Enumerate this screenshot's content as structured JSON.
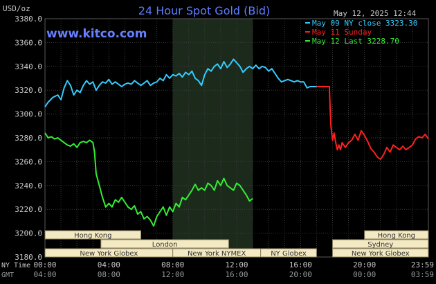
{
  "chart_data": {
    "type": "line",
    "title": "24 Hour Spot Gold (Bid)",
    "units_label": "USD/oz",
    "timestamp": "May 12, 2025 12:44",
    "watermark": "www.kitco.com",
    "ylim": [
      3180,
      3380
    ],
    "y_ticks": [
      "3380.0",
      "3360.0",
      "3340.0",
      "3320.0",
      "3300.0",
      "3280.0",
      "3260.0",
      "3240.0",
      "3220.0",
      "3200.0",
      "3180.0"
    ],
    "xlim": [
      0,
      24
    ],
    "x_ticks": [
      0,
      4,
      8,
      12,
      16,
      20,
      24
    ],
    "x_row_label_1": "NY Time",
    "x_tick_labels_ny": [
      "00:00",
      "04:00",
      "08:00",
      "12:00",
      "16:00",
      "20:00",
      "23:59"
    ],
    "x_row_label_2": "GMT",
    "x_tick_labels_gmt": [
      "04:00",
      "08:00",
      "12:00",
      "16:00",
      "20:00",
      "00:00",
      "03:59"
    ],
    "highlight_x_range": [
      8,
      13
    ],
    "grid": true,
    "legend_position": "top-right",
    "colors": {
      "background": "#000000",
      "plot": "#000000",
      "grid": "#3a3a3a",
      "highlight": "#1c2a1c",
      "title": "#5f7dff",
      "watermark": "#6680ff",
      "axis_text": "#c8c8c8",
      "session_fill": "#f3e9c2"
    },
    "series": [
      {
        "name": "May 09 NY close 3323.30",
        "color": "#33ccff",
        "x": [
          0,
          0.2,
          0.5,
          0.8,
          1.0,
          1.2,
          1.4,
          1.6,
          1.8,
          2.0,
          2.2,
          2.4,
          2.6,
          2.8,
          3.0,
          3.2,
          3.4,
          3.6,
          3.8,
          4.0,
          4.2,
          4.4,
          4.6,
          4.8,
          5.0,
          5.2,
          5.4,
          5.6,
          5.8,
          6.0,
          6.2,
          6.4,
          6.6,
          6.8,
          7.0,
          7.2,
          7.4,
          7.6,
          7.8,
          8.0,
          8.2,
          8.4,
          8.6,
          8.8,
          9.0,
          9.2,
          9.4,
          9.6,
          9.8,
          10.0,
          10.2,
          10.4,
          10.6,
          10.8,
          11.0,
          11.2,
          11.4,
          11.6,
          11.8,
          12.0,
          12.2,
          12.4,
          12.6,
          12.8,
          13.0,
          13.2,
          13.4,
          13.6,
          13.8,
          14.0,
          14.2,
          14.4,
          14.6,
          14.8,
          15.0,
          15.2,
          15.4,
          15.6,
          15.8,
          16.0,
          16.2,
          16.4,
          16.6,
          16.8,
          17.0
        ],
        "y": [
          3306,
          3310,
          3314,
          3316,
          3312,
          3322,
          3328,
          3324,
          3316,
          3320,
          3318,
          3324,
          3328,
          3325,
          3327,
          3320,
          3324,
          3327,
          3326,
          3329,
          3325,
          3327,
          3325,
          3323,
          3325,
          3326,
          3325,
          3328,
          3326,
          3324,
          3326,
          3328,
          3324,
          3326,
          3327,
          3330,
          3328,
          3333,
          3330,
          3333,
          3332,
          3334,
          3331,
          3335,
          3333,
          3336,
          3330,
          3328,
          3324,
          3333,
          3338,
          3336,
          3340,
          3342,
          3338,
          3344,
          3339,
          3342,
          3346,
          3343,
          3340,
          3335,
          3338,
          3340,
          3338,
          3341,
          3338,
          3340,
          3339,
          3336,
          3338,
          3334,
          3330,
          3327,
          3328,
          3329,
          3328,
          3327,
          3328,
          3327,
          3327,
          3322,
          3323,
          3323,
          3323
        ]
      },
      {
        "name": "May 11 Sunday",
        "color": "#ff2020",
        "x": [
          17.0,
          17.4,
          17.8,
          17.85,
          17.9,
          18.0,
          18.1,
          18.2,
          18.3,
          18.4,
          18.5,
          18.6,
          18.8,
          19.0,
          19.2,
          19.4,
          19.6,
          19.8,
          20.0,
          20.2,
          20.4,
          20.6,
          20.8,
          21.0,
          21.2,
          21.4,
          21.6,
          21.8,
          22.0,
          22.2,
          22.4,
          22.6,
          22.8,
          23.0,
          23.2,
          23.4,
          23.6,
          23.8,
          24.0
        ],
        "y": [
          3323,
          3323,
          3323,
          3305,
          3290,
          3278,
          3284,
          3276,
          3270,
          3274,
          3270,
          3276,
          3272,
          3276,
          3278,
          3283,
          3278,
          3286,
          3282,
          3277,
          3271,
          3268,
          3264,
          3262,
          3266,
          3272,
          3268,
          3274,
          3272,
          3270,
          3273,
          3270,
          3272,
          3274,
          3279,
          3281,
          3280,
          3283,
          3279
        ]
      },
      {
        "name": "May 12 Last 3228.70",
        "color": "#33ee33",
        "x": [
          0,
          0.2,
          0.4,
          0.6,
          0.8,
          1.0,
          1.2,
          1.4,
          1.6,
          1.8,
          2.0,
          2.2,
          2.4,
          2.6,
          2.8,
          3.0,
          3.1,
          3.2,
          3.3,
          3.4,
          3.6,
          3.8,
          4.0,
          4.2,
          4.4,
          4.6,
          4.8,
          5.0,
          5.2,
          5.4,
          5.6,
          5.8,
          6.0,
          6.2,
          6.4,
          6.6,
          6.8,
          7.0,
          7.2,
          7.4,
          7.6,
          7.8,
          8.0,
          8.2,
          8.4,
          8.6,
          8.8,
          9.0,
          9.2,
          9.4,
          9.6,
          9.8,
          10.0,
          10.2,
          10.4,
          10.6,
          10.8,
          11.0,
          11.2,
          11.4,
          11.6,
          11.8,
          12.0,
          12.2,
          12.4,
          12.6,
          12.8,
          13.0
        ],
        "y": [
          3284,
          3280,
          3281,
          3279,
          3280,
          3278,
          3276,
          3274,
          3273,
          3275,
          3272,
          3276,
          3277,
          3276,
          3278,
          3276,
          3268,
          3250,
          3245,
          3240,
          3230,
          3222,
          3225,
          3222,
          3228,
          3226,
          3230,
          3226,
          3222,
          3220,
          3223,
          3216,
          3218,
          3212,
          3214,
          3211,
          3206,
          3214,
          3218,
          3222,
          3215,
          3222,
          3218,
          3225,
          3222,
          3230,
          3228,
          3232,
          3236,
          3241,
          3236,
          3238,
          3236,
          3242,
          3240,
          3236,
          3244,
          3240,
          3246,
          3240,
          3238,
          3236,
          3242,
          3240,
          3236,
          3232,
          3227,
          3229
        ]
      }
    ],
    "session_bars": [
      {
        "label": "Hong Kong",
        "from": 0,
        "to": 6.0,
        "row": 0
      },
      {
        "label": "London",
        "from": 3.5,
        "to": 11.5,
        "row": 1
      },
      {
        "label": "New York Globex",
        "from": 0,
        "to": 8.0,
        "row": 2
      },
      {
        "label": "New York NYMEX",
        "from": 8.0,
        "to": 13.5,
        "row": 2
      },
      {
        "label": "NY Globex",
        "from": 13.5,
        "to": 17.0,
        "row": 2
      },
      {
        "label": "Hong Kong",
        "from": 20.0,
        "to": 24.0,
        "row": 0
      },
      {
        "label": "Sydney",
        "from": 18.0,
        "to": 24.0,
        "row": 1
      },
      {
        "label": "New York Globex",
        "from": 18.0,
        "to": 24.0,
        "row": 2
      }
    ]
  }
}
